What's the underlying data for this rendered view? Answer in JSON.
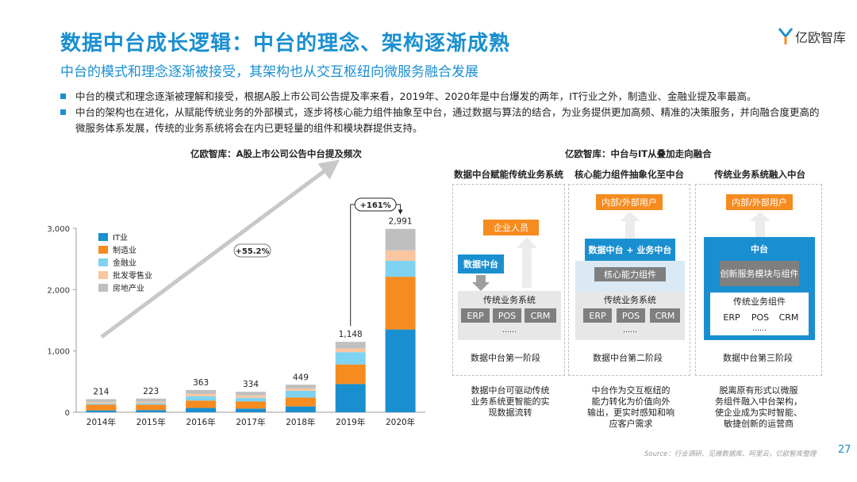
{
  "header": {
    "title": "数据中台成长逻辑：中台的理念、架构逐渐成熟",
    "subtitle": "中台的模式和理念逐渐被接受，其架构也从交互枢纽向微服务融合发展",
    "logo_text": "亿欧智库"
  },
  "bullets": [
    "中台的模式和理念逐渐被理解和接受，根据A股上市公司公告提及率来看，2019年、2020年是中台爆发的两年，IT行业之外，制造业、金融业提及率最高。",
    "中台的架构也在进化，从赋能传统业务的外部模式，逐步将核心能力组件抽象至中台，通过数据与算法的结合，为业务提供更加高频、精准的决策服务，并向融合度更高的微服务体系发展，传统的业务系统将会在内已更轻量的组件和模块群提供支持。"
  ],
  "chart_title": "亿欧智库：A股上市公司公告中台提及频次",
  "chart_data": {
    "type": "bar",
    "stacked": true,
    "title": "亿欧智库：A股上市公司公告中台提及频次",
    "categories": [
      "2014年",
      "2015年",
      "2016年",
      "2017年",
      "2018年",
      "2019年",
      "2020年"
    ],
    "totals": [
      214,
      223,
      363,
      334,
      449,
      1148,
      2991
    ],
    "series": [
      {
        "name": "IT业",
        "color": "#1a8fd0",
        "values": [
          30,
          35,
          70,
          60,
          95,
          460,
          1350
        ]
      },
      {
        "name": "制造业",
        "color": "#f68b1f",
        "values": [
          95,
          90,
          120,
          115,
          145,
          320,
          860
        ]
      },
      {
        "name": "金融业",
        "color": "#7fd3f0",
        "values": [
          20,
          25,
          70,
          60,
          110,
          200,
          260
        ]
      },
      {
        "name": "批发零售业",
        "color": "#f9c6a0",
        "values": [
          20,
          20,
          40,
          40,
          39,
          60,
          170
        ]
      },
      {
        "name": "房地产业",
        "color": "#bfbfbf",
        "values": [
          49,
          53,
          63,
          59,
          60,
          108,
          351
        ]
      }
    ],
    "yticks": [
      0,
      1000,
      2000,
      3000
    ],
    "ytick_labels": [
      "0",
      "1,000",
      "2,000",
      "3,000"
    ],
    "ylim": [
      0,
      3000
    ],
    "growth_labels": [
      "+55.2%",
      "+161%"
    ],
    "legend_position": "top-left"
  },
  "diagram": {
    "title": "亿欧智库：中台与IT从叠加走向融合",
    "panels": [
      {
        "title": "数据中台赋能传统业务系统",
        "top_box": "企业人员",
        "middle_box": "数据中台",
        "system_label": "传统业务系统",
        "modules": [
          "ERP",
          "POS",
          "CRM"
        ],
        "ellipsis": "……",
        "stage": "数据中台第一阶段",
        "note": [
          "数据中台可驱动传统",
          "业务系统更智能的实",
          "现数据流转"
        ]
      },
      {
        "title": "核心能力组件抽象化至中台",
        "top_box": "内部/外部用户",
        "middle_box": "数据中台 + 业务中台",
        "core_box": "核心能力组件",
        "system_label": "传统业务系统",
        "modules": [
          "ERP",
          "POS",
          "CRM"
        ],
        "ellipsis": "……",
        "stage": "数据中台第二阶段",
        "note": [
          "中台作为交互枢纽的",
          "能力转化为价值向外",
          "输出，更实时感知和响",
          "应客户需求"
        ]
      },
      {
        "title": "传统业务系统融入中台",
        "top_box": "内部/外部用户",
        "middle_box": "中台",
        "core_box": "创新服务模块与组件",
        "system_label": "传统业务组件",
        "modules": [
          "ERP",
          "POS",
          "CRM"
        ],
        "ellipsis": "……",
        "stage": "数据中台第三阶段",
        "note": [
          "脱离原有形式以微服",
          "务组件融入中台架构，",
          "使企业成为实时智能、",
          "敏捷创新的运营商"
        ]
      }
    ]
  },
  "footer": {
    "source": "Source：行业调研、见微数据库、阿里云，亿欧智库整理",
    "page_number": "27"
  },
  "colors": {
    "accent": "#1a8fd0",
    "orange": "#f68b1f"
  }
}
